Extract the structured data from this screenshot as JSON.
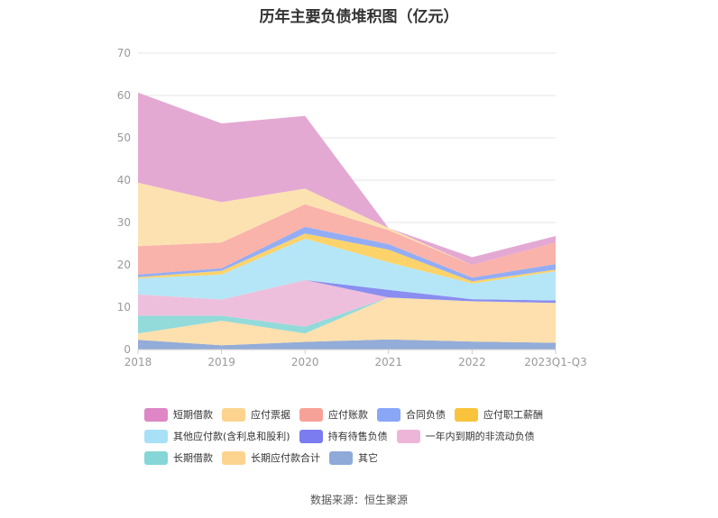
{
  "chart_data": {
    "type": "area",
    "stacked": true,
    "title": "历年主要负债堆积图（亿元）",
    "categories": [
      "2018",
      "2019",
      "2020",
      "2021",
      "2022",
      "2023Q1-Q3"
    ],
    "ylim": [
      0,
      70
    ],
    "yticks": [
      0,
      10,
      20,
      30,
      40,
      50,
      60,
      70
    ],
    "grid": true,
    "legend_position": "bottom",
    "series": [
      {
        "name": "其它",
        "color": "#94acd8",
        "values": [
          2.3,
          1.0,
          1.8,
          2.4,
          1.9,
          1.6
        ]
      },
      {
        "name": "长期应付款合计",
        "color": "#fde0ad",
        "values": [
          1.5,
          5.8,
          2.0,
          9.9,
          9.5,
          9.4
        ]
      },
      {
        "name": "长期借款",
        "color": "#93dada",
        "values": [
          4.2,
          1.2,
          1.6,
          0.0,
          0.0,
          0.0
        ]
      },
      {
        "name": "一年内到期的非流动负债",
        "color": "#eebfdc",
        "values": [
          5.0,
          3.8,
          11.0,
          0.0,
          0.0,
          0.0
        ]
      },
      {
        "name": "持有待售负债",
        "color": "#8a8ef0",
        "values": [
          0.0,
          0.0,
          0.0,
          1.8,
          0.5,
          0.6
        ]
      },
      {
        "name": "其他应付款(含利息和股利)",
        "color": "#b5e6f7",
        "values": [
          3.8,
          5.9,
          9.8,
          6.5,
          3.7,
          6.9
        ]
      },
      {
        "name": "应付职工薪酬",
        "color": "#fcd36b",
        "values": [
          0.3,
          0.9,
          1.2,
          3.0,
          0.5,
          0.4
        ]
      },
      {
        "name": "合同负债",
        "color": "#93adf5",
        "values": [
          0.6,
          0.6,
          1.6,
          1.3,
          0.9,
          1.3
        ]
      },
      {
        "name": "应付账款",
        "color": "#f9b3aa",
        "values": [
          6.7,
          6.1,
          5.3,
          3.3,
          3.0,
          5.1
        ]
      },
      {
        "name": "应付票据",
        "color": "#fde2b1",
        "values": [
          15.0,
          9.5,
          3.7,
          0.5,
          0.0,
          0.0
        ]
      },
      {
        "name": "短期借款",
        "color": "#e3a9d3",
        "values": [
          21.3,
          18.6,
          17.2,
          0.0,
          1.8,
          1.5
        ]
      }
    ],
    "legend": [
      [
        "短期借款",
        "应付票据",
        "应付账款",
        "合同负债",
        "应付职工薪酬"
      ],
      [
        "其他应付款(含利息和股利)",
        "持有待售负债",
        "一年内到期的非流动负债"
      ],
      [
        "长期借款",
        "长期应付款合计",
        "其它"
      ]
    ],
    "legend_colors": {
      "短期借款": "#de86c6",
      "应付票据": "#fdd48f",
      "应付账款": "#f7a298",
      "合同负债": "#89a6f7",
      "应付职工薪酬": "#f9c43c",
      "其他应付款(含利息和股利)": "#a8e1f7",
      "持有待售负债": "#7b7cf0",
      "一年内到期的非流动负债": "#edb6d9",
      "长期借款": "#85d6d6",
      "长期应付款合计": "#fdd48f",
      "其它": "#8fa9d9"
    }
  },
  "source_note": "数据来源：恒生聚源"
}
